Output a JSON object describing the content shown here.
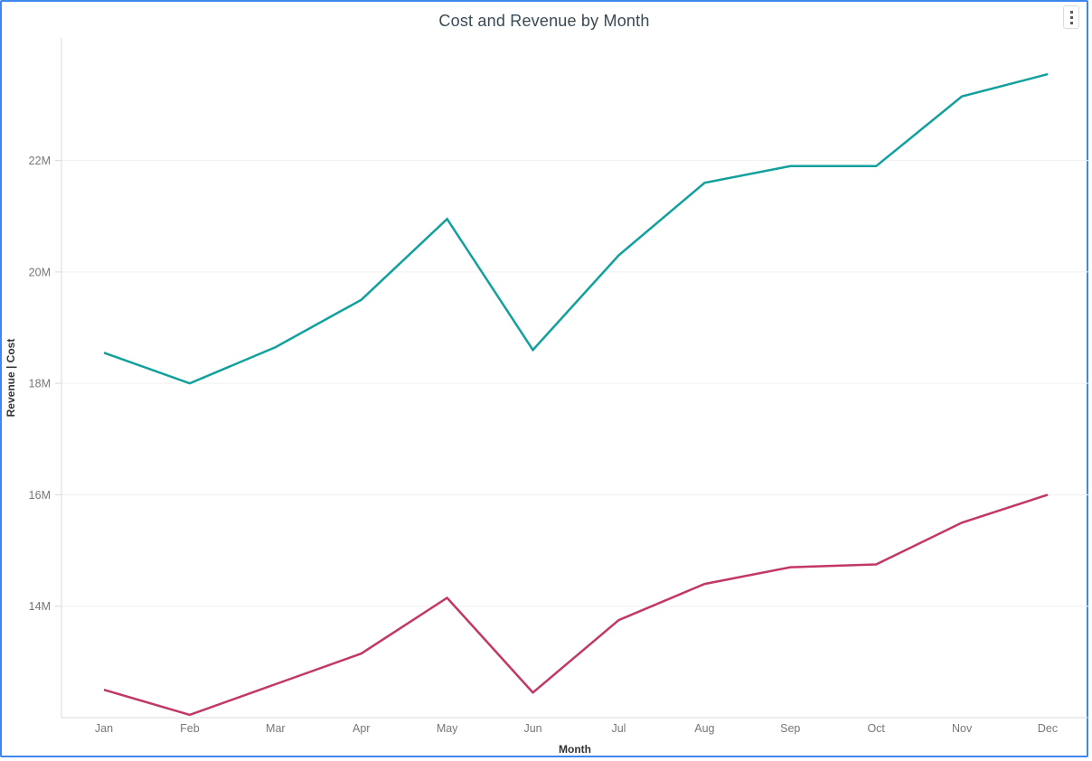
{
  "card": {
    "border_color": "#3E87F0",
    "background": "#FFFFFF"
  },
  "header": {
    "title": "Cost and Revenue by Month",
    "menu_icon": "kebab-menu-icon"
  },
  "chart_data": {
    "type": "line",
    "title": "Cost and Revenue by Month",
    "xlabel": "Month",
    "ylabel": "Revenue  |  Cost",
    "categories": [
      "Jan",
      "Feb",
      "Mar",
      "Apr",
      "May",
      "Jun",
      "Jul",
      "Aug",
      "Sep",
      "Oct",
      "Nov",
      "Dec"
    ],
    "unit": "millions",
    "ylim": [
      12,
      24.2
    ],
    "yticks": [
      14,
      16,
      18,
      20,
      22
    ],
    "ytick_labels": [
      "14M",
      "16M",
      "18M",
      "20M",
      "22M"
    ],
    "grid": true,
    "legend_position": "none",
    "series": [
      {
        "name": "Revenue",
        "color": "#12A09E",
        "values": [
          18.55,
          18.0,
          18.65,
          19.5,
          20.95,
          18.6,
          20.3,
          21.6,
          21.9,
          21.9,
          23.15,
          23.55
        ]
      },
      {
        "name": "Cost",
        "color": "#C23768",
        "values": [
          12.5,
          12.05,
          12.6,
          13.15,
          14.15,
          12.45,
          13.75,
          14.4,
          14.7,
          14.75,
          15.5,
          16.0
        ]
      }
    ],
    "style": {
      "grid_color": "#F0F0F0",
      "axis_color": "#D9D9D9",
      "tick_label_color": "#777777",
      "axis_title_color": "#333333",
      "line_width": 2.5
    }
  }
}
